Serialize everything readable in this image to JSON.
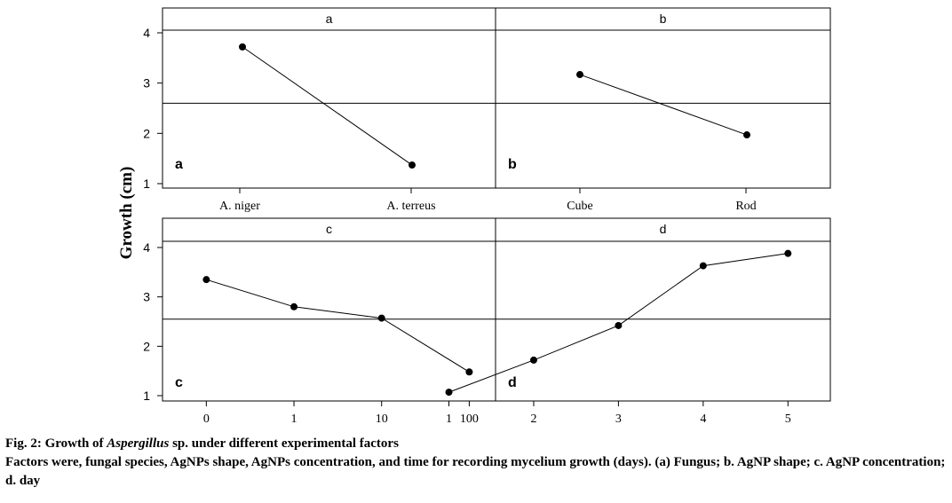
{
  "chart_data": {
    "type": "line",
    "ylabel": "Growth (cm)",
    "yticks": [
      1,
      2,
      3,
      4
    ],
    "ylim": [
      0.85,
      4.3
    ],
    "panels": [
      {
        "id": "a",
        "strip": "a",
        "letter": "a",
        "categories": [
          "A. niger",
          "A. terreus"
        ],
        "values": [
          3.72,
          1.37
        ],
        "mean": 2.6
      },
      {
        "id": "b",
        "strip": "b",
        "letter": "b",
        "categories": [
          "Cube",
          "Rod"
        ],
        "values": [
          3.17,
          1.97
        ],
        "mean": 2.6
      },
      {
        "id": "c",
        "strip": "c",
        "letter": "c",
        "categories": [
          "0",
          "1",
          "10",
          "100"
        ],
        "values": [
          3.35,
          2.8,
          2.57,
          1.48
        ],
        "mean": 2.55
      },
      {
        "id": "d",
        "strip": "d",
        "letter": "d",
        "categories": [
          "1",
          "2",
          "3",
          "4",
          "5"
        ],
        "values": [
          1.07,
          1.72,
          2.42,
          3.63,
          3.88
        ],
        "mean": 2.55
      }
    ]
  },
  "caption": {
    "prefix": "Fig. 2: Growth of ",
    "species": "Aspergillus",
    "suffix": " sp. under different experimental factors",
    "body": "Factors were, fungal species, AgNPs shape, AgNPs concentration, and time for recording mycelium growth (days). (a) Fungus; b. AgNP shape; c. AgNP concentration; d. day"
  }
}
